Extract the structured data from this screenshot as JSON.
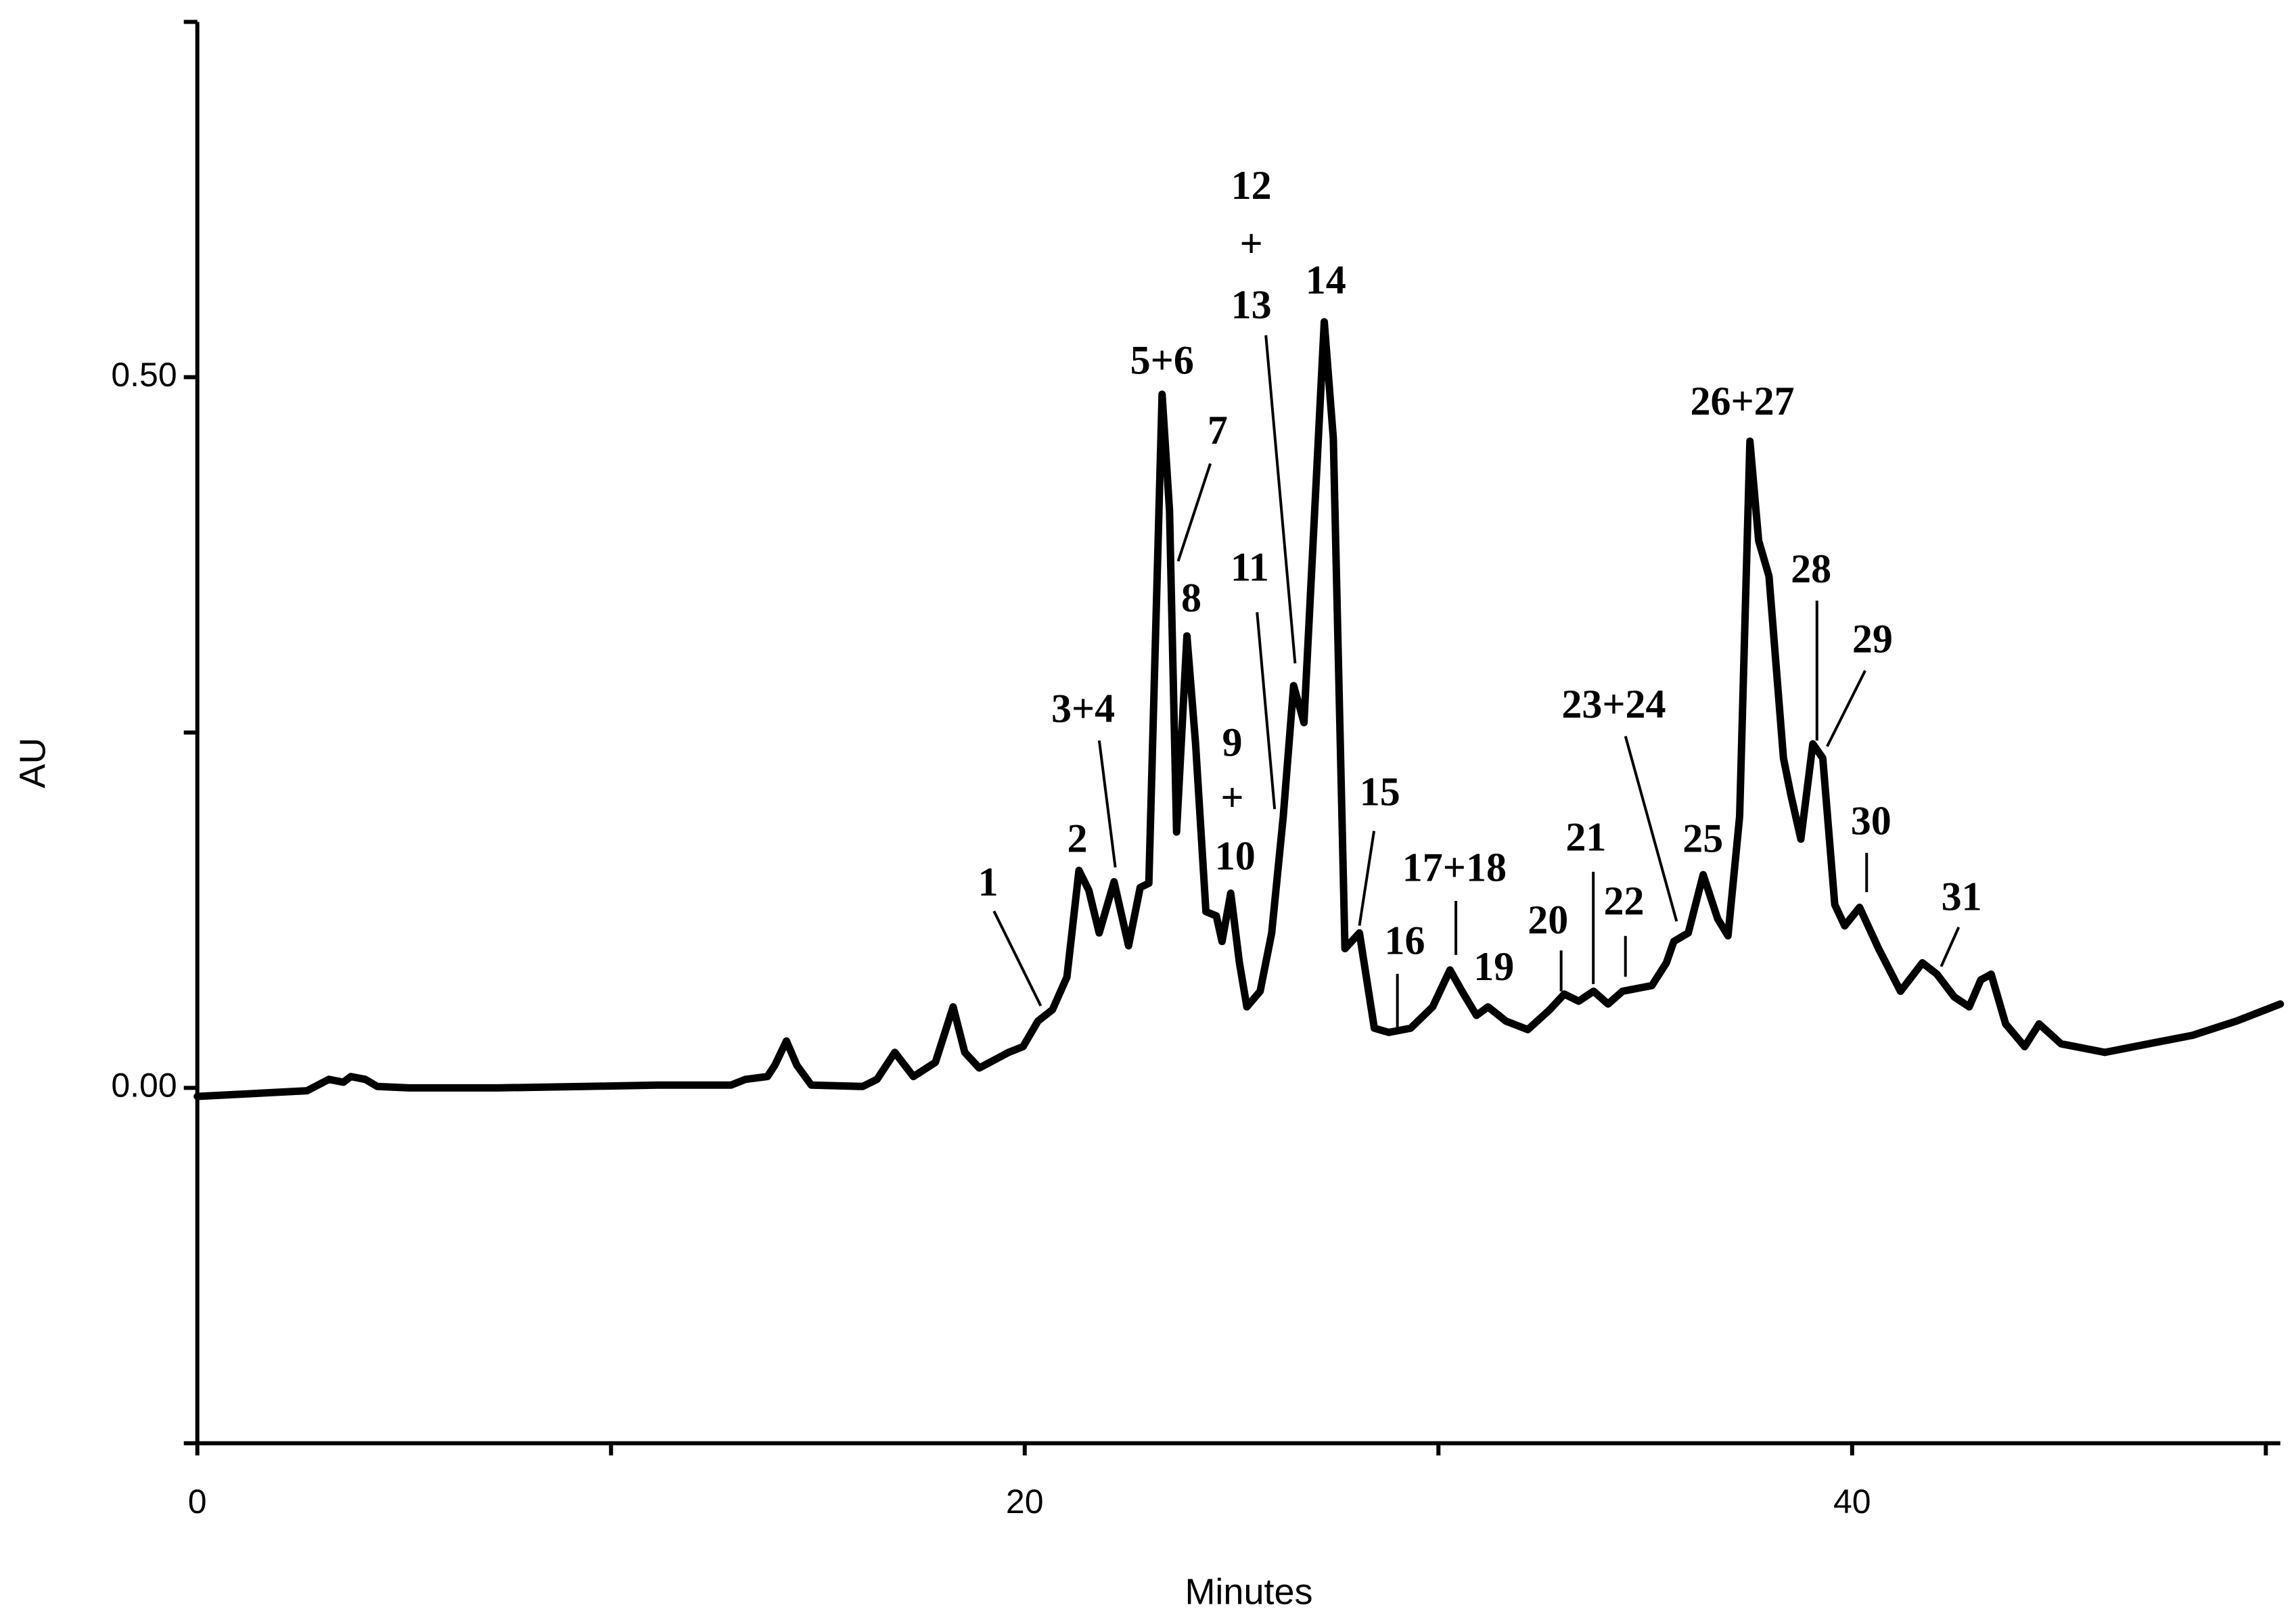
{
  "chart_data": {
    "type": "line",
    "x_label": "Minutes",
    "y_label": "AU",
    "xlim": [
      0,
      50.35
    ],
    "ylim": [
      -0.25,
      0.75
    ],
    "xticks": [
      0,
      20,
      40
    ],
    "minor_xticks": [
      10,
      30,
      50
    ],
    "yticks": [
      {
        "value": 0,
        "label": "0.00"
      },
      {
        "value": 0.5,
        "label": "0.50"
      }
    ],
    "minor_yticks": [
      -0.25,
      0.25,
      0.75
    ],
    "color": "#000000",
    "x": [
      0,
      2.65,
      3.18,
      3.53,
      3.71,
      4.06,
      4.35,
      5.12,
      5.83,
      7.24,
      9.36,
      11.13,
      12.9,
      13.25,
      13.78,
      13.96,
      14.24,
      14.49,
      14.84,
      16.08,
      16.43,
      16.86,
      17.31,
      17.84,
      18.27,
      18.55,
      18.9,
      19.61,
      19.96,
      20.32,
      20.67,
      21.02,
      21.31,
      21.55,
      21.8,
      22.16,
      22.51,
      22.79,
      23,
      23.32,
      23.5,
      23.67,
      23.92,
      24.13,
      24.38,
      24.63,
      24.77,
      24.98,
      25.19,
      25.37,
      25.69,
      25.97,
      26.25,
      26.5,
      26.75,
      27.24,
      27.46,
      27.74,
      28.09,
      28.45,
      28.8,
      29.33,
      29.86,
      30.28,
      30.57,
      30.92,
      31.2,
      31.63,
      32.16,
      32.69,
      33.04,
      33.39,
      33.75,
      34.1,
      34.45,
      35.16,
      35.51,
      35.69,
      36.04,
      36.4,
      36.75,
      37,
      37.28,
      37.53,
      37.74,
      37.99,
      38.34,
      38.52,
      38.76,
      39.05,
      39.29,
      39.58,
      39.82,
      40.18,
      40.64,
      41.17,
      41.7,
      42.05,
      42.47,
      42.83,
      43.11,
      43.36,
      43.71,
      44.17,
      44.52,
      45.05,
      46.11,
      47.17,
      48.23,
      49.29,
      50.35
    ],
    "values": [
      -0.006,
      -0.002,
      0.006,
      0.004,
      0.008,
      0.006,
      0.001,
      0,
      0,
      0,
      0.001,
      0.002,
      0.002,
      0.006,
      0.008,
      0.016,
      0.033,
      0.016,
      0.002,
      0.001,
      0.006,
      0.025,
      0.008,
      0.018,
      0.057,
      0.025,
      0.014,
      0.025,
      0.029,
      0.047,
      0.055,
      0.078,
      0.153,
      0.139,
      0.109,
      0.145,
      0.1,
      0.141,
      0.144,
      0.488,
      0.406,
      0.18,
      0.318,
      0.242,
      0.124,
      0.121,
      0.103,
      0.137,
      0.088,
      0.057,
      0.068,
      0.109,
      0.191,
      0.283,
      0.257,
      0.539,
      0.457,
      0.098,
      0.109,
      0.042,
      0.039,
      0.042,
      0.057,
      0.083,
      0.068,
      0.051,
      0.057,
      0.047,
      0.041,
      0.055,
      0.066,
      0.061,
      0.068,
      0.059,
      0.068,
      0.072,
      0.088,
      0.103,
      0.109,
      0.15,
      0.119,
      0.107,
      0.191,
      0.455,
      0.385,
      0.36,
      0.232,
      0.206,
      0.175,
      0.242,
      0.232,
      0.129,
      0.114,
      0.127,
      0.098,
      0.068,
      0.088,
      0.08,
      0.064,
      0.057,
      0.076,
      0.08,
      0.045,
      0.029,
      0.045,
      0.031,
      0.025,
      0.031,
      0.037,
      0.047,
      0.059
    ],
    "annotations": [
      "1",
      "2",
      "3+4",
      "5+6",
      "7",
      "8",
      "9",
      "+",
      "10",
      "11",
      "12",
      "+",
      "13",
      "14",
      "15",
      "16",
      "17+18",
      "19",
      "20",
      "21",
      "22",
      "23+24",
      "25",
      "26+27",
      "28",
      "29",
      "30",
      "31"
    ]
  }
}
